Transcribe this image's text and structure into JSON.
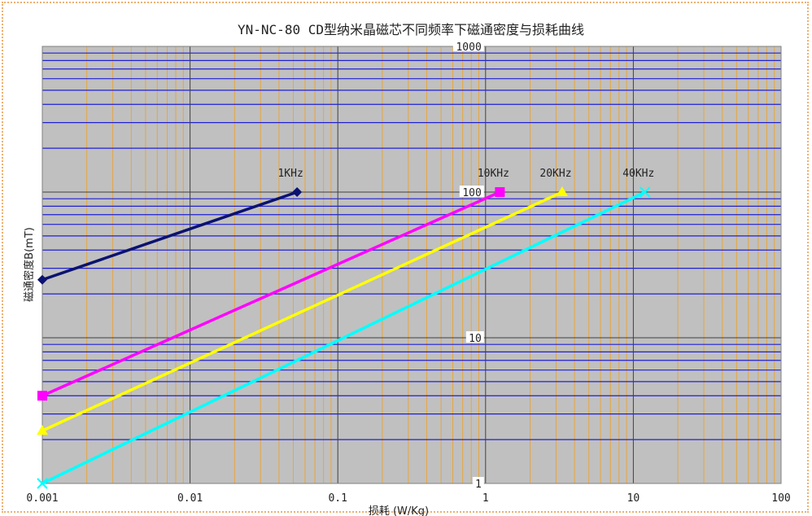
{
  "chart_data": {
    "type": "line",
    "title": "YN-NC-80 CD型纳米晶磁芯不同频率下磁通密度与损耗曲线",
    "xlabel": "损耗 (W/Kg)",
    "ylabel": "磁通密度B(mT)",
    "x_scale": "log",
    "y_scale": "log",
    "xlim": [
      0.001,
      100
    ],
    "ylim": [
      1,
      1000
    ],
    "x_ticks": [
      "0.001",
      "0.01",
      "0.1",
      "1",
      "10",
      "100"
    ],
    "y_ticks": [
      "1",
      "10",
      "100",
      "1000"
    ],
    "grid": true,
    "colors": {
      "plot_background": "#c0c0c0",
      "major_grid": "#404040",
      "y_minor_grid": "#1f1fd6",
      "x_minor_grid": "#e8a53c",
      "frame_border": "#f0b070"
    },
    "series": [
      {
        "name": "1KHz",
        "color": "#0b1270",
        "marker": "diamond",
        "x": [
          0.001,
          0.053
        ],
        "y": [
          25,
          100
        ]
      },
      {
        "name": "10KHz",
        "color": "#ff00ff",
        "marker": "square",
        "x": [
          0.001,
          1.25
        ],
        "y": [
          4,
          100
        ]
      },
      {
        "name": "20KHz",
        "color": "#ffff00",
        "marker": "triangle",
        "x": [
          0.001,
          3.3
        ],
        "y": [
          2.3,
          100
        ]
      },
      {
        "name": "40KHz",
        "color": "#00ffff",
        "marker": "x",
        "x": [
          0.001,
          12
        ],
        "y": [
          1,
          100
        ]
      }
    ]
  }
}
